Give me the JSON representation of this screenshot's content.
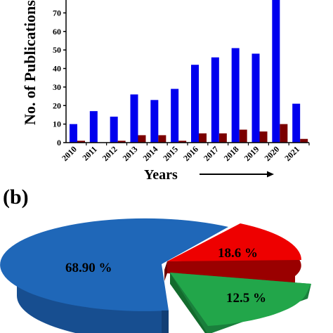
{
  "chart_data": [
    {
      "type": "bar",
      "categories": [
        "2010",
        "2011",
        "2012",
        "2013",
        "2014",
        "2015",
        "2016",
        "2017",
        "2018",
        "2019",
        "2020",
        "2021"
      ],
      "series": [
        {
          "values": [
            10,
            17,
            14,
            26,
            23,
            29,
            42,
            46,
            51,
            48,
            78,
            21
          ],
          "color": "#0000ee"
        },
        {
          "values": [
            1,
            0,
            1,
            4,
            4,
            1,
            5,
            5,
            7,
            6,
            10,
            2
          ],
          "color": "#7b0000"
        }
      ],
      "ylabel": "No. of Publications",
      "xlabel": "Years",
      "yticks": [
        0,
        10,
        20,
        30,
        40,
        50,
        60,
        70
      ],
      "ylim": [
        0,
        80
      ],
      "grid": false
    },
    {
      "type": "pie",
      "panel_label": "(b)",
      "slices": [
        {
          "label": "68.90 %",
          "value": 68.9,
          "color": "#1f67b8"
        },
        {
          "label": "18.6 %",
          "value": 18.6,
          "color": "#ee0000"
        },
        {
          "label": "12.5 %",
          "value": 12.5,
          "color": "#22a64a"
        }
      ],
      "style": "3d-exploded"
    }
  ]
}
